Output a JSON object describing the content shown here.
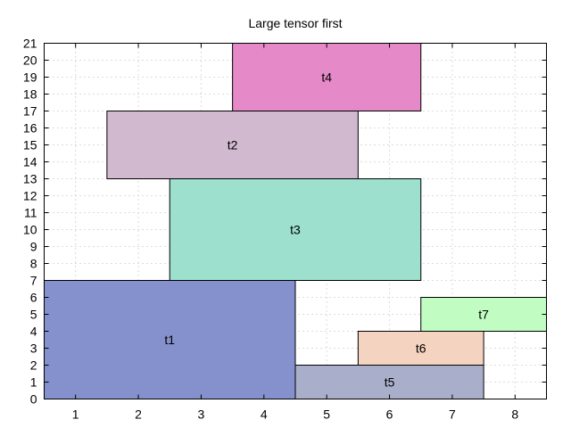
{
  "chart_data": {
    "type": "rectangles",
    "title": "Large tensor first",
    "xlabel": "",
    "ylabel": "",
    "xlim": [
      0.5,
      8.5
    ],
    "ylim": [
      0,
      21
    ],
    "x_ticks": [
      "1",
      "2",
      "3",
      "4",
      "5",
      "6",
      "7",
      "8"
    ],
    "y_ticks": [
      "0",
      "1",
      "2",
      "3",
      "4",
      "5",
      "6",
      "7",
      "8",
      "9",
      "10",
      "11",
      "12",
      "13",
      "14",
      "15",
      "16",
      "17",
      "18",
      "19",
      "20",
      "21"
    ],
    "grid": true,
    "legend": "none",
    "rects": [
      {
        "label": "t1",
        "x0": 0.5,
        "x1": 4.5,
        "y0": 0,
        "y1": 7,
        "color": "#8591cc"
      },
      {
        "label": "t2",
        "x0": 1.5,
        "x1": 5.5,
        "y0": 13,
        "y1": 17,
        "color": "#d1b9cf"
      },
      {
        "label": "t3",
        "x0": 2.5,
        "x1": 6.5,
        "y0": 7,
        "y1": 13,
        "color": "#9de0cd"
      },
      {
        "label": "t4",
        "x0": 3.5,
        "x1": 6.5,
        "y0": 17,
        "y1": 21,
        "color": "#e589c8"
      },
      {
        "label": "t5",
        "x0": 4.5,
        "x1": 7.5,
        "y0": 0,
        "y1": 2,
        "color": "#a9afca"
      },
      {
        "label": "t6",
        "x0": 5.5,
        "x1": 7.5,
        "y0": 2,
        "y1": 4,
        "color": "#f5d3c1"
      },
      {
        "label": "t7",
        "x0": 6.5,
        "x1": 8.5,
        "y0": 4,
        "y1": 6,
        "color": "#c1fdc2"
      }
    ]
  }
}
